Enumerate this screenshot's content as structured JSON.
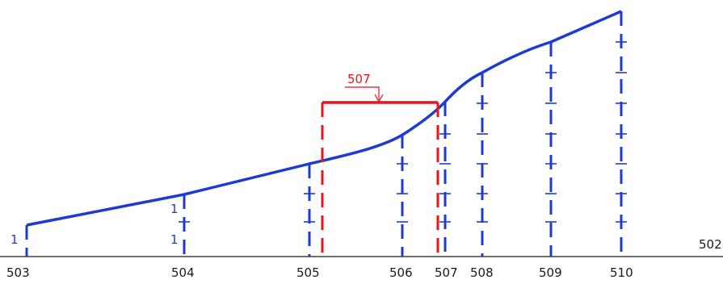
{
  "baseline": {
    "label": "502"
  },
  "stations": [
    {
      "label": "503",
      "marks": 0
    },
    {
      "label": "504",
      "marks": 1
    },
    {
      "label": "505",
      "marks": 2
    },
    {
      "label": "506",
      "marks": 3
    },
    {
      "label": "507",
      "marks": 4
    },
    {
      "label": "508",
      "marks": 5
    },
    {
      "label": "509",
      "marks": 6
    },
    {
      "label": "510",
      "marks": 7
    }
  ],
  "side_labels": [
    "1",
    "1",
    "1"
  ],
  "highlight": {
    "label": "507"
  },
  "colors": {
    "curve": "#1e3ad6",
    "highlight": "#e8141c",
    "axis": "#1a1a1a"
  }
}
